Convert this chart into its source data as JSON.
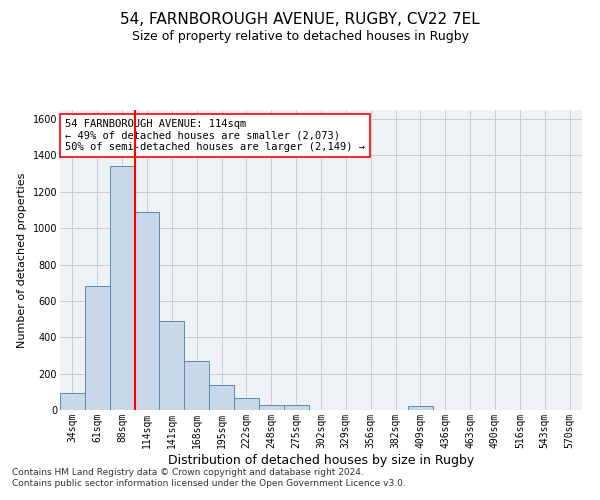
{
  "title_line1": "54, FARNBOROUGH AVENUE, RUGBY, CV22 7EL",
  "title_line2": "Size of property relative to detached houses in Rugby",
  "xlabel": "Distribution of detached houses by size in Rugby",
  "ylabel": "Number of detached properties",
  "categories": [
    "34sqm",
    "61sqm",
    "88sqm",
    "114sqm",
    "141sqm",
    "168sqm",
    "195sqm",
    "222sqm",
    "248sqm",
    "275sqm",
    "302sqm",
    "329sqm",
    "356sqm",
    "382sqm",
    "409sqm",
    "436sqm",
    "463sqm",
    "490sqm",
    "516sqm",
    "543sqm",
    "570sqm"
  ],
  "values": [
    95,
    680,
    1340,
    1090,
    490,
    270,
    135,
    65,
    30,
    30,
    0,
    0,
    0,
    0,
    20,
    0,
    0,
    0,
    0,
    0,
    0
  ],
  "bar_color": "#c8d8e8",
  "bar_edge_color": "#5a8ab0",
  "vline_x_index": 3,
  "vline_color": "red",
  "annotation_text": "54 FARNBOROUGH AVENUE: 114sqm\n← 49% of detached houses are smaller (2,073)\n50% of semi-detached houses are larger (2,149) →",
  "annotation_box_color": "white",
  "annotation_box_edge_color": "red",
  "ylim": [
    0,
    1650
  ],
  "yticks": [
    0,
    200,
    400,
    600,
    800,
    1000,
    1200,
    1400,
    1600
  ],
  "grid_color": "#cccccc",
  "bg_color": "#eef2f7",
  "footnote": "Contains HM Land Registry data © Crown copyright and database right 2024.\nContains public sector information licensed under the Open Government Licence v3.0.",
  "title1_fontsize": 11,
  "title2_fontsize": 9,
  "xlabel_fontsize": 9,
  "ylabel_fontsize": 8,
  "tick_fontsize": 7,
  "annotation_fontsize": 7.5,
  "footnote_fontsize": 6.5
}
